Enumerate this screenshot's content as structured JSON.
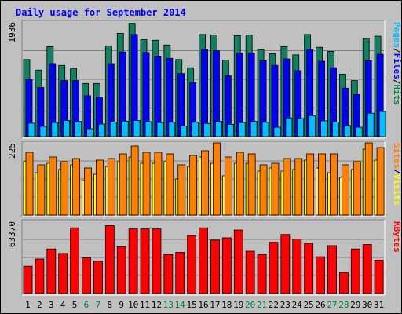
{
  "chart_data": {
    "type": "bar",
    "title": "Daily usage for September 2014",
    "categories": [
      "1",
      "2",
      "3",
      "4",
      "5",
      "6",
      "7",
      "8",
      "9",
      "10",
      "11",
      "12",
      "13",
      "14",
      "15",
      "16",
      "17",
      "18",
      "19",
      "20",
      "21",
      "22",
      "23",
      "24",
      "25",
      "26",
      "27",
      "28",
      "29",
      "30",
      "31"
    ],
    "weekend_days": [
      6,
      7,
      13,
      14,
      20,
      21,
      27,
      28
    ],
    "panels": [
      {
        "id": "hits-files-pages",
        "ymax_label": "1936",
        "ymax": 1936,
        "legend": [
          {
            "text": "Pages",
            "color": "#00c0ff"
          },
          {
            "text": "/",
            "color": "#000000"
          },
          {
            "text": "Files",
            "color": "#0000ff"
          },
          {
            "text": "/",
            "color": "#000000"
          },
          {
            "text": "Hits",
            "color": "#008040"
          }
        ],
        "series": [
          {
            "name": "Hits",
            "color": "#108060",
            "values": [
              1320,
              1140,
              1540,
              1220,
              1170,
              910,
              910,
              1550,
              1770,
              1940,
              1660,
              1650,
              1570,
              1320,
              1180,
              1750,
              1740,
              1310,
              1730,
              1740,
              1490,
              1420,
              1540,
              1400,
              1750,
              1530,
              1460,
              1070,
              960,
              1680,
              1720
            ]
          },
          {
            "name": "Files",
            "color": "#0000ff",
            "values": [
              980,
              840,
              1250,
              960,
              960,
              700,
              680,
              1250,
              1450,
              1750,
              1440,
              1380,
              1340,
              1080,
              930,
              1490,
              1470,
              1040,
              1430,
              1430,
              1300,
              1220,
              1330,
              1130,
              1490,
              1290,
              1180,
              830,
              720,
              1300,
              1410
            ]
          },
          {
            "name": "Pages",
            "color": "#00c0ff",
            "values": [
              230,
              175,
              240,
              275,
              260,
              135,
              215,
              250,
              265,
              275,
              255,
              240,
              245,
              180,
              245,
              225,
              260,
              210,
              240,
              260,
              245,
              160,
              320,
              310,
              360,
              270,
              250,
              190,
              160,
              400,
              430
            ]
          }
        ]
      },
      {
        "id": "visits-sites",
        "ymax_label": "225",
        "ymax": 225,
        "legend": [
          {
            "text": "Sites",
            "color": "#ff8000"
          },
          {
            "text": "/",
            "color": "#000000"
          },
          {
            "text": "Visits",
            "color": "#ffff00"
          }
        ],
        "series": [
          {
            "name": "Visits",
            "color": "#ffff00",
            "values": [
              170,
              135,
              165,
              145,
              160,
              110,
              130,
              155,
              170,
              185,
              165,
              165,
              170,
              115,
              155,
              185,
              165,
              125,
              165,
              165,
              140,
              150,
              140,
              145,
              175,
              150,
              135,
              120,
              145,
              210,
              175
            ]
          },
          {
            "name": "Sites",
            "color": "#ff8000",
            "values": [
              200,
              160,
              185,
              170,
              180,
              150,
              175,
              180,
              195,
              220,
              200,
              200,
              195,
              160,
              190,
              205,
              230,
              185,
              200,
              195,
              160,
              165,
              180,
              180,
              195,
              195,
              195,
              160,
              170,
              230,
              215
            ]
          }
        ]
      },
      {
        "id": "kbytes",
        "ymax_label": "63370",
        "ymax": 63370,
        "legend": [
          {
            "text": "KBytes",
            "color": "#ff0000"
          }
        ],
        "series": [
          {
            "name": "KBytes",
            "color": "#ff0000",
            "values": [
              24500,
              31000,
              40000,
              36000,
              59000,
              32000,
              29000,
              61000,
              42000,
              58000,
              58000,
              58000,
              35000,
              37000,
              52000,
              59000,
              48000,
              50000,
              57000,
              38000,
              35000,
              46000,
              53000,
              49000,
              45000,
              33000,
              43000,
              19000,
              40000,
              44000,
              30000
            ]
          }
        ]
      }
    ]
  }
}
